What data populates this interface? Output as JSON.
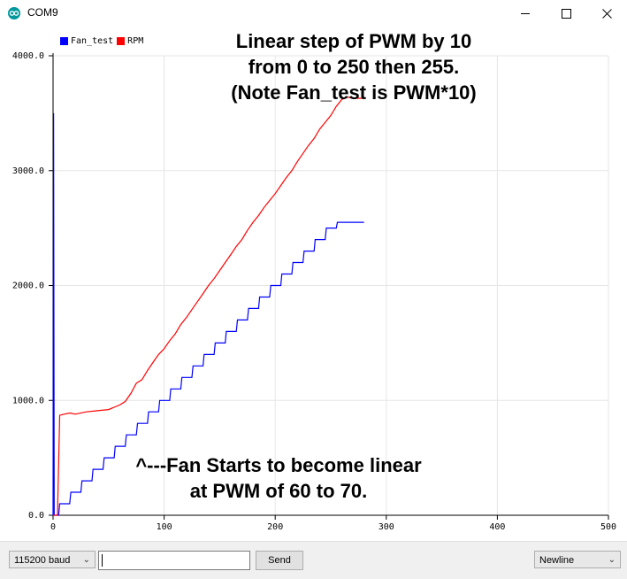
{
  "window": {
    "title": "COM9",
    "icon": "arduino-icon",
    "controls": [
      "minimize-icon",
      "maximize-icon",
      "close-icon"
    ]
  },
  "annotations": {
    "title_lines": [
      "Linear step of PWM by 10",
      "from 0 to 250 then 255.",
      "(Note Fan_test is PWM*10)"
    ],
    "note_lines": [
      "^---Fan Starts to become linear",
      "at PWM of 60 to 70."
    ]
  },
  "colors": {
    "fan_test": "#0000ff",
    "rpm": "#ff0000",
    "grid": "#e6e6e6"
  },
  "chart_data": {
    "type": "line",
    "title": "",
    "xlabel": "",
    "ylabel": "",
    "xlim": [
      0,
      500
    ],
    "ylim": [
      0,
      4000
    ],
    "x_ticks": [
      "0",
      "100",
      "200",
      "300",
      "400",
      "500"
    ],
    "y_ticks": [
      "0.0",
      "1000.0",
      "2000.0",
      "3000.0",
      "4000.0"
    ],
    "grid": true,
    "legend": "top-left",
    "series": [
      {
        "name": "Fan_test",
        "color": "#0000ff",
        "x": [
          0,
          0.5,
          1,
          5,
          6,
          15,
          16,
          25,
          26,
          35,
          36,
          45,
          46,
          55,
          56,
          65,
          66,
          75,
          76,
          85,
          86,
          95,
          96,
          105,
          106,
          115,
          116,
          125,
          126,
          135,
          136,
          145,
          146,
          155,
          156,
          165,
          166,
          175,
          176,
          185,
          186,
          195,
          196,
          205,
          206,
          215,
          216,
          225,
          226,
          235,
          236,
          245,
          246,
          255,
          256,
          280
        ],
        "y": [
          0,
          3500,
          0,
          0,
          100,
          100,
          200,
          200,
          300,
          300,
          400,
          400,
          500,
          500,
          600,
          600,
          700,
          700,
          800,
          800,
          900,
          900,
          1000,
          1000,
          1100,
          1100,
          1200,
          1200,
          1300,
          1300,
          1400,
          1400,
          1500,
          1500,
          1600,
          1600,
          1700,
          1700,
          1800,
          1800,
          1900,
          1900,
          2000,
          2000,
          2100,
          2100,
          2200,
          2200,
          2300,
          2300,
          2400,
          2400,
          2500,
          2500,
          2550,
          2550
        ]
      },
      {
        "name": "RPM",
        "color": "#ff0000",
        "x": [
          0,
          2,
          4,
          6,
          10,
          15,
          20,
          30,
          40,
          50,
          55,
          60,
          65,
          70,
          75,
          80,
          85,
          90,
          95,
          100,
          105,
          110,
          115,
          120,
          125,
          130,
          135,
          140,
          145,
          150,
          155,
          160,
          165,
          170,
          175,
          180,
          185,
          190,
          195,
          200,
          205,
          210,
          215,
          220,
          225,
          230,
          235,
          240,
          245,
          250,
          255,
          260,
          265,
          270,
          280
        ],
        "y": [
          0,
          0,
          0,
          870,
          880,
          890,
          880,
          900,
          910,
          920,
          940,
          960,
          990,
          1060,
          1150,
          1180,
          1260,
          1330,
          1400,
          1450,
          1520,
          1580,
          1660,
          1720,
          1790,
          1860,
          1930,
          2000,
          2060,
          2130,
          2200,
          2270,
          2340,
          2400,
          2480,
          2550,
          2610,
          2680,
          2740,
          2800,
          2870,
          2940,
          3000,
          3080,
          3150,
          3220,
          3280,
          3360,
          3420,
          3480,
          3560,
          3620,
          3640,
          3630,
          3630
        ]
      }
    ]
  },
  "controls": {
    "baud_value": "115200 baud",
    "input_value": "",
    "send_label": "Send",
    "line_ending_value": "Newline"
  }
}
